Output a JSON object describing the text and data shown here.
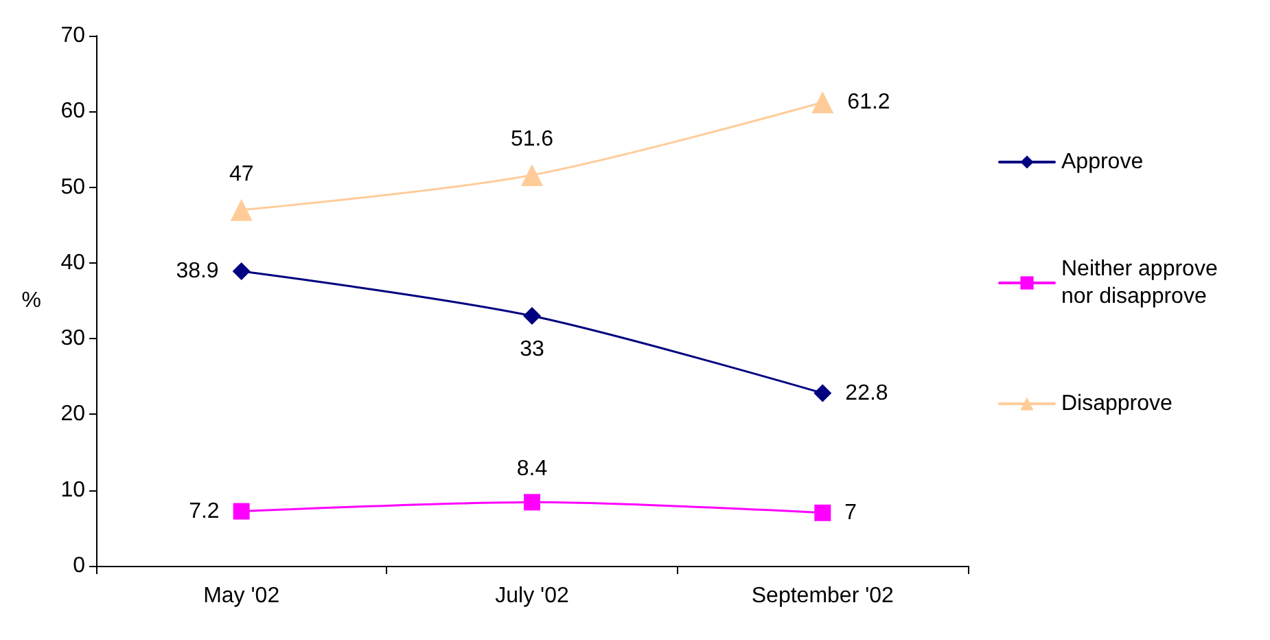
{
  "chart_data": {
    "type": "line",
    "ylabel": "%",
    "categories": [
      "May '02",
      "July '02",
      "September '02"
    ],
    "series": [
      {
        "name": "Approve",
        "color": "#000080",
        "marker": "diamond",
        "values": [
          38.9,
          33,
          22.8
        ]
      },
      {
        "name": "Neither approve nor disapprove",
        "color": "#ff00ff",
        "marker": "square",
        "values": [
          7.2,
          8.4,
          7
        ]
      },
      {
        "name": "Disapprove",
        "color": "#ffcc99",
        "marker": "triangle",
        "values": [
          47,
          51.6,
          61.2
        ]
      }
    ],
    "ylim": [
      0,
      70
    ],
    "yticks": [
      0,
      10,
      20,
      30,
      40,
      50,
      60,
      70
    ],
    "grid": false,
    "legend": "right",
    "data_labels": true
  }
}
